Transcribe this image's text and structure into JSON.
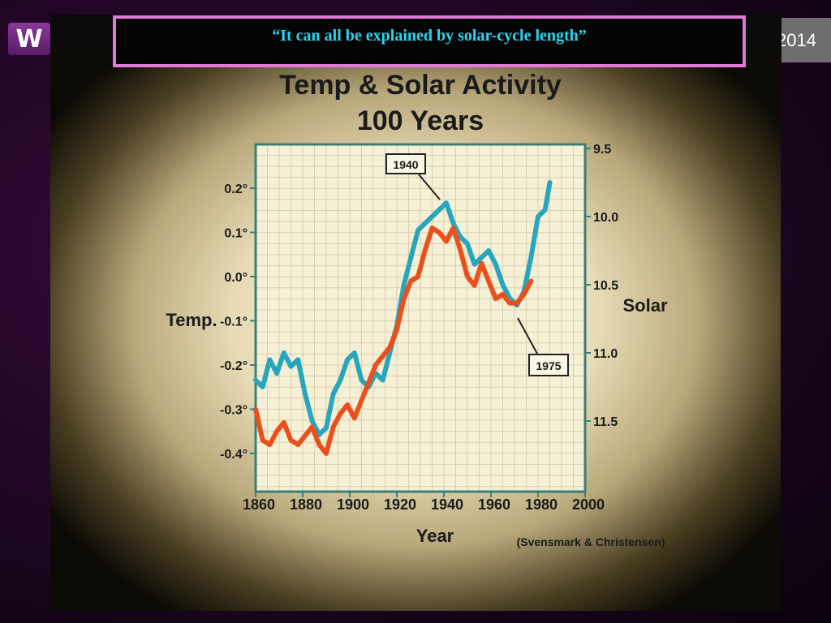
{
  "logo": {
    "letter": "W"
  },
  "year_tag": {
    "text": "2014"
  },
  "banner": {
    "quote": "“It can all be explained by solar-cycle length”"
  },
  "colors": {
    "temperature": "#e9501c",
    "solar": "#27a6be",
    "banner_border": "#e07ad8",
    "banner_text": "#2ad7ee",
    "axis": "#3a7f7a"
  },
  "chart_data": {
    "type": "line",
    "title": "Temp & Solar Activity",
    "subtitle": "100 Years",
    "xlabel": "Year",
    "ylabel_left": "Temp.",
    "ylabel_right": "Solar",
    "source": "(Svensmark & Christensen)",
    "xlim": [
      1860,
      2000
    ],
    "ylim_left": [
      -0.5,
      0.3
    ],
    "ylim_right": [
      9.5,
      11.75
    ],
    "right_axis_inverted": true,
    "x_ticks": [
      "1860",
      "1880",
      "1900",
      "1920",
      "1940",
      "1960",
      "1980",
      "2000"
    ],
    "y_ticks_left": [
      "0.2°",
      "0.1°",
      "0.0°",
      "-0.1°",
      "-0.2°",
      "-0.3°",
      "-0.4°"
    ],
    "y_ticks_right": [
      "9.5",
      "10.0",
      "10.5",
      "11.0",
      "11.5"
    ],
    "grid": true,
    "annotations": [
      {
        "text": "1940",
        "x": 1942
      },
      {
        "text": "1975",
        "x": 1970
      }
    ],
    "series": [
      {
        "axis": "left",
        "x": [
          1860,
          1863,
          1866,
          1869,
          1872,
          1875,
          1878,
          1881,
          1884,
          1887,
          1890,
          1893,
          1896,
          1899,
          1902,
          1905,
          1908,
          1911,
          1914,
          1917,
          1920,
          1923,
          1926,
          1929,
          1932,
          1935,
          1938,
          1941,
          1944,
          1947,
          1950,
          1953,
          1956,
          1959,
          1962,
          1965,
          1968,
          1971,
          1974,
          1977
        ],
        "values": [
          -0.3,
          -0.37,
          -0.38,
          -0.35,
          -0.33,
          -0.37,
          -0.38,
          -0.36,
          -0.34,
          -0.38,
          -0.4,
          -0.34,
          -0.31,
          -0.29,
          -0.32,
          -0.28,
          -0.24,
          -0.2,
          -0.18,
          -0.16,
          -0.12,
          -0.05,
          -0.01,
          0.0,
          0.06,
          0.11,
          0.1,
          0.08,
          0.11,
          0.06,
          0.0,
          -0.02,
          0.03,
          -0.01,
          -0.05,
          -0.04,
          -0.06,
          -0.06,
          -0.04,
          -0.01
        ]
      },
      {
        "axis": "right",
        "x": [
          1860,
          1863,
          1866,
          1869,
          1872,
          1875,
          1878,
          1881,
          1884,
          1887,
          1890,
          1893,
          1896,
          1899,
          1902,
          1905,
          1908,
          1911,
          1914,
          1917,
          1920,
          1923,
          1926,
          1929,
          1932,
          1935,
          1938,
          1941,
          1944,
          1947,
          1950,
          1953,
          1956,
          1959,
          1962,
          1965,
          1968,
          1971,
          1974,
          1977,
          1980,
          1983,
          1985
        ],
        "values": [
          11.2,
          11.25,
          11.05,
          11.15,
          11.0,
          11.1,
          11.05,
          11.3,
          11.5,
          11.6,
          11.55,
          11.3,
          11.2,
          11.05,
          11.0,
          11.2,
          11.25,
          11.15,
          11.2,
          11.0,
          10.8,
          10.5,
          10.3,
          10.1,
          10.05,
          10.0,
          9.95,
          9.9,
          10.05,
          10.15,
          10.2,
          10.35,
          10.3,
          10.25,
          10.35,
          10.5,
          10.6,
          10.65,
          10.55,
          10.3,
          10.0,
          9.95,
          9.75
        ]
      }
    ]
  }
}
